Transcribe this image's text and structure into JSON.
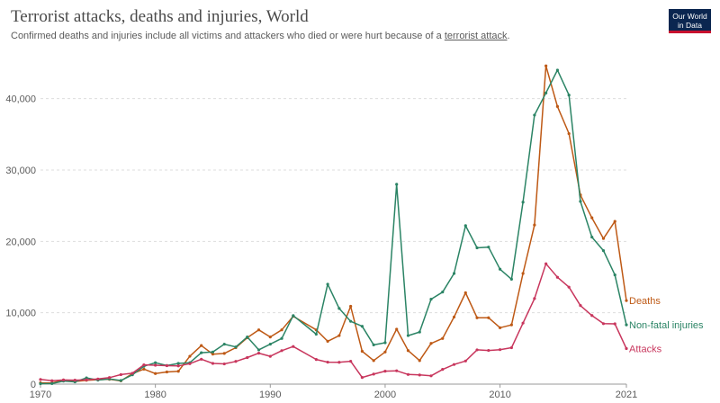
{
  "header": {
    "title": "Terrorist attacks, deaths and injuries, World",
    "subtitle_text": "Confirmed deaths and injuries include all victims and attackers who died or were hurt because of a ",
    "subtitle_link": "terrorist attack",
    "subtitle_end": "."
  },
  "logo": {
    "line1": "Our World",
    "line2": "in Data"
  },
  "chart_data": {
    "type": "line",
    "title": "Terrorist attacks, deaths and injuries, World",
    "subtitle": "Confirmed deaths and injuries include all victims and attackers who died or were hurt because of a terrorist attack.",
    "xlim": [
      1970,
      2021
    ],
    "ylim": [
      0,
      45000
    ],
    "x_ticks": [
      1970,
      1980,
      1990,
      2000,
      2010,
      2021
    ],
    "y_ticks": [
      0,
      10000,
      20000,
      30000,
      40000
    ],
    "y_tick_labels": [
      "0",
      "10,000",
      "20,000",
      "30,000",
      "40,000"
    ],
    "grid": "horizontal dashed",
    "legend": "inline labels at right end of lines",
    "x": [
      1970,
      1971,
      1972,
      1973,
      1974,
      1975,
      1976,
      1977,
      1978,
      1979,
      1980,
      1981,
      1982,
      1983,
      1984,
      1985,
      1986,
      1987,
      1988,
      1989,
      1990,
      1991,
      1992,
      1994,
      1995,
      1996,
      1997,
      1998,
      1999,
      2000,
      2001,
      2002,
      2003,
      2004,
      2005,
      2006,
      2007,
      2008,
      2009,
      2010,
      2011,
      2012,
      2013,
      2014,
      2015,
      2016,
      2017,
      2018,
      2019,
      2020,
      2021
    ],
    "series": [
      {
        "name": "Deaths",
        "color": "#be5915",
        "values": [
          170,
          170,
          570,
          370,
          540,
          620,
          680,
          450,
          1460,
          2100,
          1480,
          1700,
          1800,
          3900,
          5400,
          4200,
          4300,
          5100,
          6500,
          7600,
          6600,
          7600,
          9500,
          7600,
          6000,
          6800,
          10900,
          4600,
          3300,
          4500,
          7700,
          4700,
          3300,
          5700,
          6400,
          9400,
          12800,
          9300,
          9300,
          7900,
          8300,
          15500,
          22300,
          44600,
          38900,
          35100,
          26500,
          23300,
          20400,
          22800,
          11700
        ]
      },
      {
        "name": "Non-fatal injuries",
        "color": "#2b8465",
        "values": [
          60,
          80,
          430,
          310,
          870,
          570,
          720,
          500,
          1300,
          2500,
          3000,
          2600,
          2900,
          3000,
          4400,
          4500,
          5600,
          5200,
          6600,
          4800,
          5600,
          6400,
          9600,
          7000,
          14000,
          10600,
          8800,
          8100,
          5500,
          5800,
          28000,
          6800,
          7300,
          11900,
          12900,
          15500,
          22200,
          19100,
          19200,
          16100,
          14700,
          25500,
          37700,
          40800,
          44000,
          40500,
          25600,
          20600,
          18700,
          15300,
          8300
        ]
      },
      {
        "name": "Attacks",
        "color": "#c8365d",
        "values": [
          650,
          470,
          580,
          550,
          600,
          720,
          910,
          1330,
          1520,
          2700,
          2650,
          2580,
          2550,
          2860,
          3490,
          2900,
          2830,
          3180,
          3720,
          4330,
          3890,
          4690,
          5270,
          3450,
          3080,
          3060,
          3200,
          930,
          1400,
          1810,
          1870,
          1350,
          1280,
          1160,
          2060,
          2750,
          3240,
          4800,
          4720,
          4830,
          5100,
          8550,
          11990,
          16860,
          14970,
          13590,
          11010,
          9610,
          8470,
          8450,
          4980
        ]
      }
    ]
  }
}
